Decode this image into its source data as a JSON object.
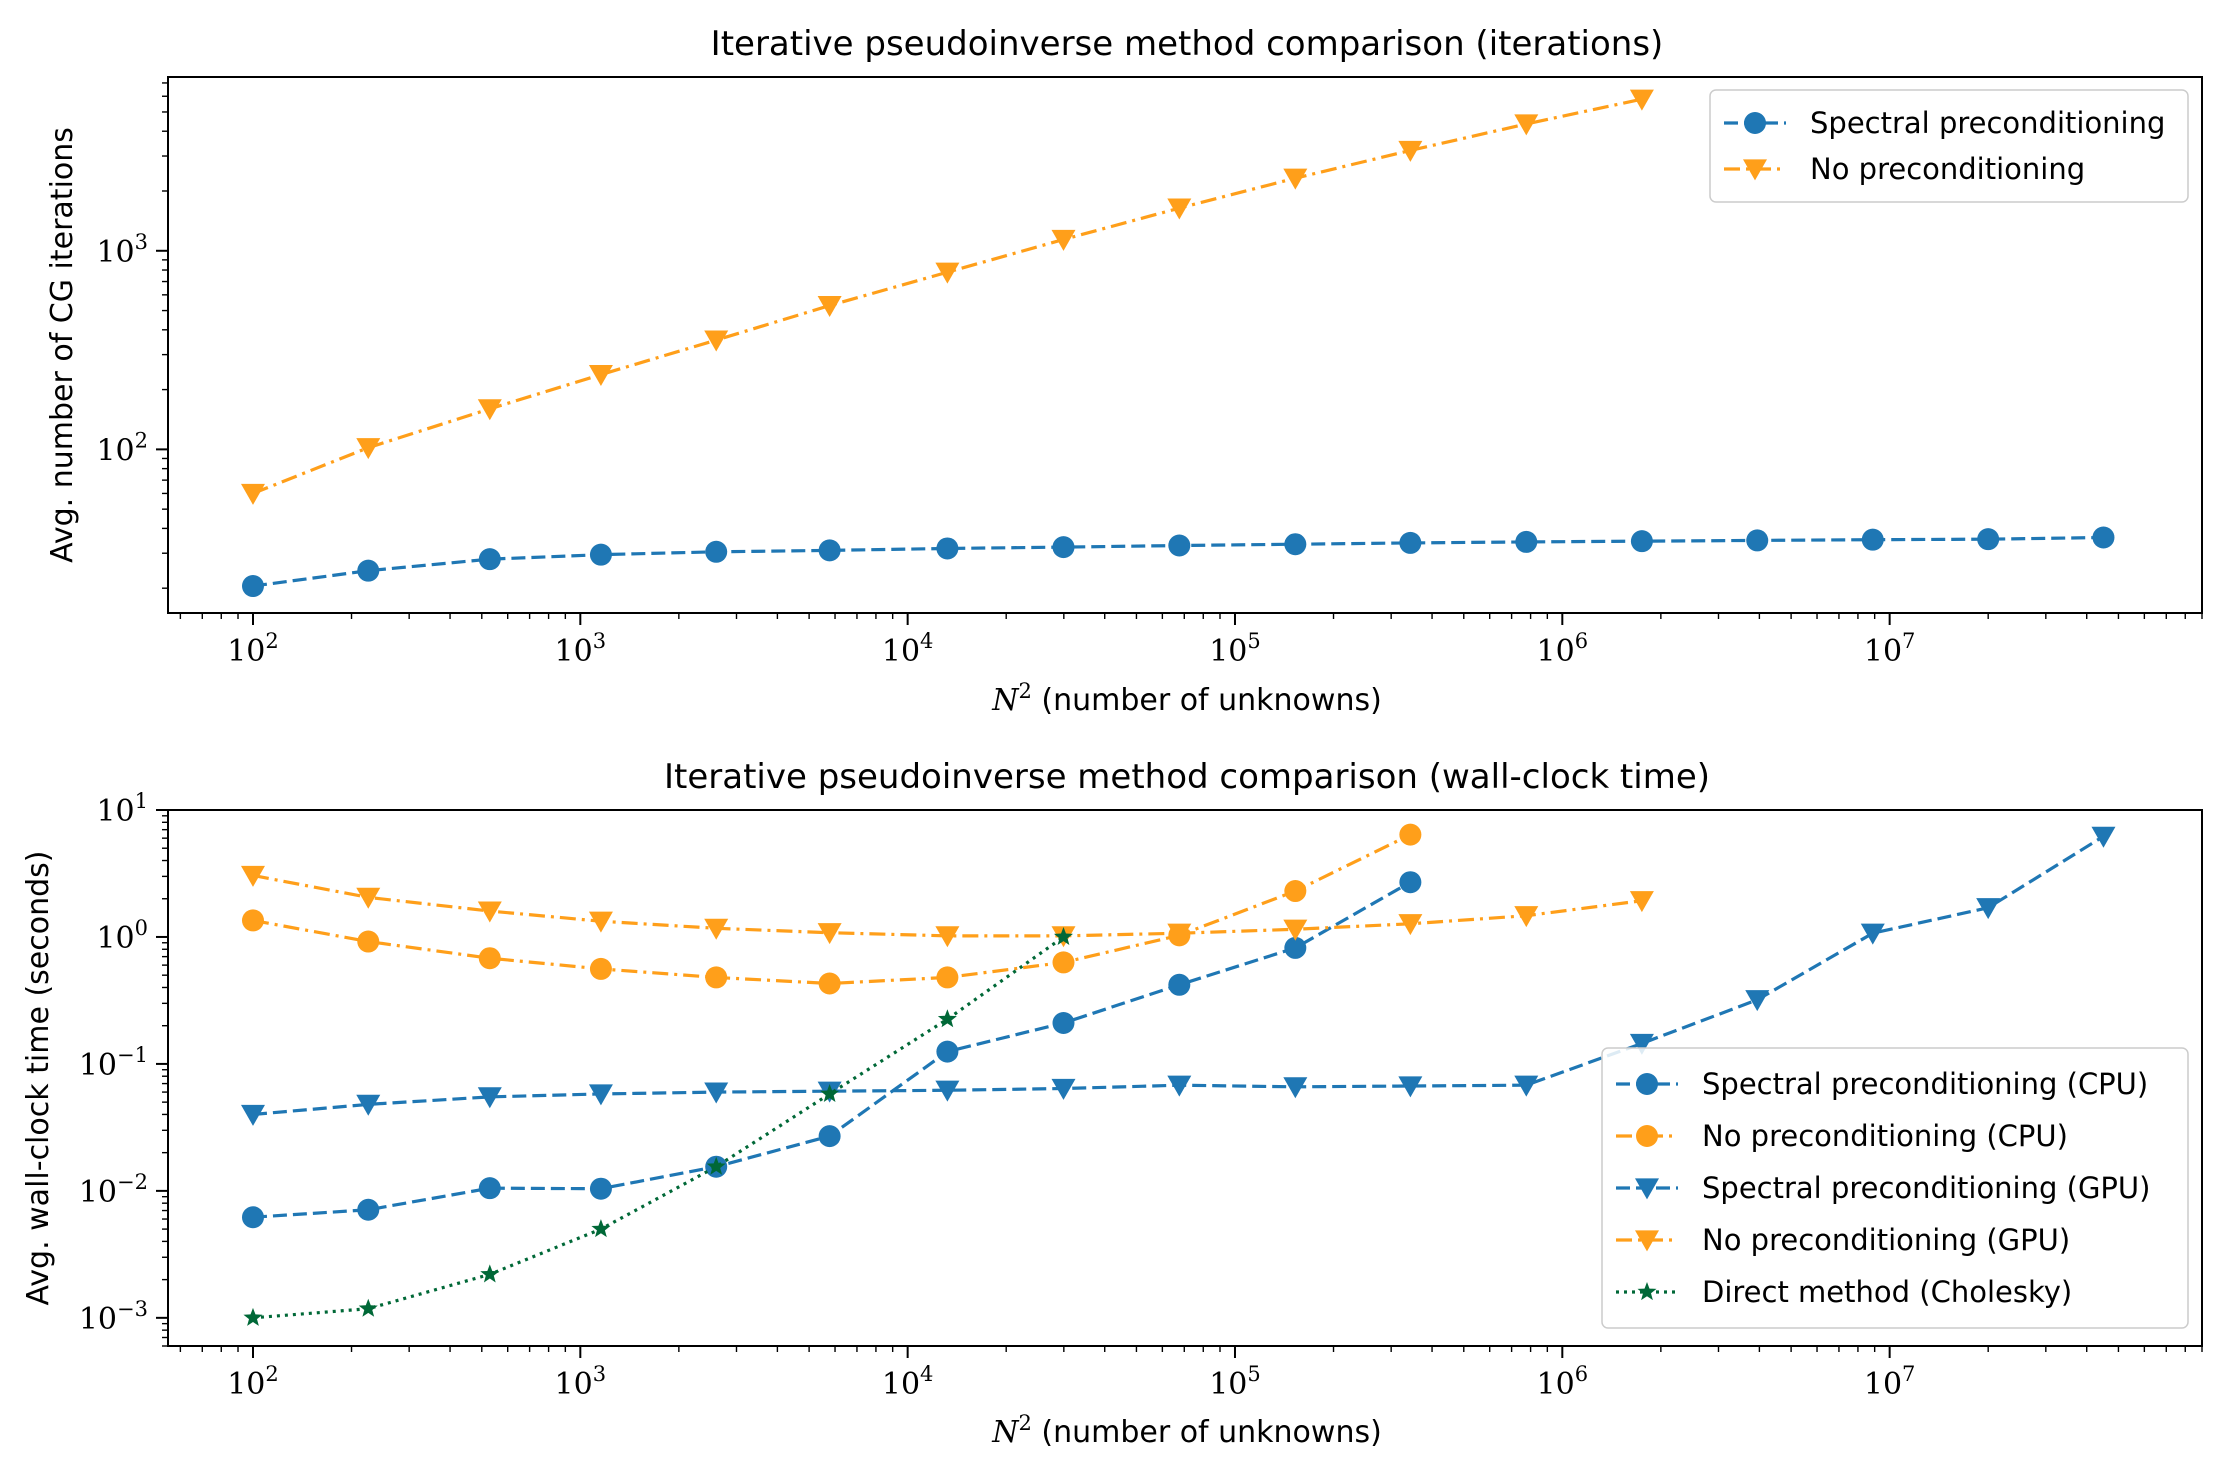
{
  "chart_data": [
    {
      "type": "line",
      "title": "Iterative pseudoinverse method comparison (iterations)",
      "xlabel": "N² (number of unknowns)",
      "ylabel": "Avg. number of CG iterations",
      "xscale": "log",
      "yscale": "log",
      "xlim": [
        55,
        90000000
      ],
      "ylim": [
        15,
        7500
      ],
      "xticks": [
        {
          "base": "10",
          "exp": "2"
        },
        {
          "base": "10",
          "exp": "3"
        },
        {
          "base": "10",
          "exp": "4"
        },
        {
          "base": "10",
          "exp": "5"
        },
        {
          "base": "10",
          "exp": "6"
        },
        {
          "base": "10",
          "exp": "7"
        }
      ],
      "yticks": [
        {
          "base": "10",
          "exp": "2"
        },
        {
          "base": "10",
          "exp": "3"
        }
      ],
      "grid": false,
      "legend_position": "top-right",
      "series": [
        {
          "name": "Spectral preconditioning",
          "color": "#1f77b4",
          "marker": "circle",
          "linestyle": "dashed",
          "x": [
            100,
            225,
            529,
            1156,
            2601,
            5776,
            13225,
            29929,
            67600,
            152881,
            343396,
            776161,
            1750329,
            3940225,
            8880400,
            19998784,
            45000000
          ],
          "y": [
            20.5,
            24.5,
            28,
            29.5,
            30.5,
            31,
            31.7,
            32.2,
            32.8,
            33.3,
            33.8,
            34.2,
            34.5,
            34.8,
            35.1,
            35.3,
            36
          ]
        },
        {
          "name": "No preconditioning",
          "color": "#ff9f1a",
          "marker": "triangle-down",
          "linestyle": "dashdot",
          "x": [
            100,
            225,
            529,
            1156,
            2601,
            5776,
            13225,
            29929,
            67600,
            152881,
            343396,
            776161,
            1750329
          ],
          "y": [
            60,
            102,
            160,
            238,
            355,
            530,
            780,
            1140,
            1640,
            2320,
            3200,
            4350,
            5800
          ]
        }
      ]
    },
    {
      "type": "line",
      "title": "Iterative pseudoinverse method comparison (wall-clock time)",
      "xlabel": "N² (number of unknowns)",
      "ylabel": "Avg. wall-clock time (seconds)",
      "xscale": "log",
      "yscale": "log",
      "xlim": [
        55,
        90000000
      ],
      "ylim": [
        0.0006,
        10
      ],
      "xticks": [
        {
          "base": "10",
          "exp": "2"
        },
        {
          "base": "10",
          "exp": "3"
        },
        {
          "base": "10",
          "exp": "4"
        },
        {
          "base": "10",
          "exp": "5"
        },
        {
          "base": "10",
          "exp": "6"
        },
        {
          "base": "10",
          "exp": "7"
        }
      ],
      "yticks": [
        {
          "base": "10",
          "exp": "−3"
        },
        {
          "base": "10",
          "exp": "−2"
        },
        {
          "base": "10",
          "exp": "−1"
        },
        {
          "base": "10",
          "exp": "0"
        },
        {
          "base": "10",
          "exp": "1"
        }
      ],
      "grid": false,
      "legend_position": "bottom-right",
      "series": [
        {
          "name": "Spectral preconditioning (CPU)",
          "color": "#1f77b4",
          "marker": "circle",
          "linestyle": "dashed",
          "x": [
            100,
            225,
            529,
            1156,
            2601,
            5776,
            13225,
            29929,
            67600,
            152881,
            343396
          ],
          "y": [
            0.0062,
            0.0071,
            0.0105,
            0.0104,
            0.0155,
            0.027,
            0.125,
            0.21,
            0.42,
            0.82,
            2.7
          ]
        },
        {
          "name": "No preconditioning (CPU)",
          "color": "#ff9f1a",
          "marker": "circle",
          "linestyle": "dashdot",
          "x": [
            100,
            225,
            529,
            1156,
            2601,
            5776,
            13225,
            29929,
            67600,
            152881,
            343396
          ],
          "y": [
            1.35,
            0.92,
            0.68,
            0.56,
            0.48,
            0.43,
            0.48,
            0.63,
            1.03,
            2.3,
            6.4
          ]
        },
        {
          "name": "Spectral preconditioning (GPU)",
          "color": "#1f77b4",
          "marker": "triangle-down",
          "linestyle": "dashed",
          "x": [
            100,
            225,
            529,
            1156,
            2601,
            5776,
            13225,
            29929,
            67600,
            152881,
            343396,
            776161,
            1750329,
            3940225,
            8880400,
            19998784,
            45000000
          ],
          "y": [
            0.04,
            0.048,
            0.055,
            0.058,
            0.06,
            0.061,
            0.062,
            0.064,
            0.068,
            0.066,
            0.067,
            0.068,
            0.145,
            0.32,
            1.07,
            1.7,
            6.2
          ]
        },
        {
          "name": "No preconditioning (GPU)",
          "color": "#ff9f1a",
          "marker": "triangle-down",
          "linestyle": "dashdot",
          "x": [
            100,
            225,
            529,
            1156,
            2601,
            5776,
            13225,
            29929,
            67600,
            152881,
            343396,
            776161,
            1750329
          ],
          "y": [
            3.05,
            2.05,
            1.6,
            1.33,
            1.17,
            1.08,
            1.02,
            1.02,
            1.07,
            1.15,
            1.27,
            1.47,
            1.93
          ]
        },
        {
          "name": "Direct method (Cholesky)",
          "color": "#006837",
          "marker": "star",
          "linestyle": "dotted",
          "x": [
            100,
            225,
            529,
            1156,
            2601,
            5776,
            13225,
            29929
          ],
          "y": [
            0.001,
            0.00118,
            0.0022,
            0.005,
            0.0155,
            0.058,
            0.225,
            1.0
          ]
        }
      ]
    }
  ]
}
